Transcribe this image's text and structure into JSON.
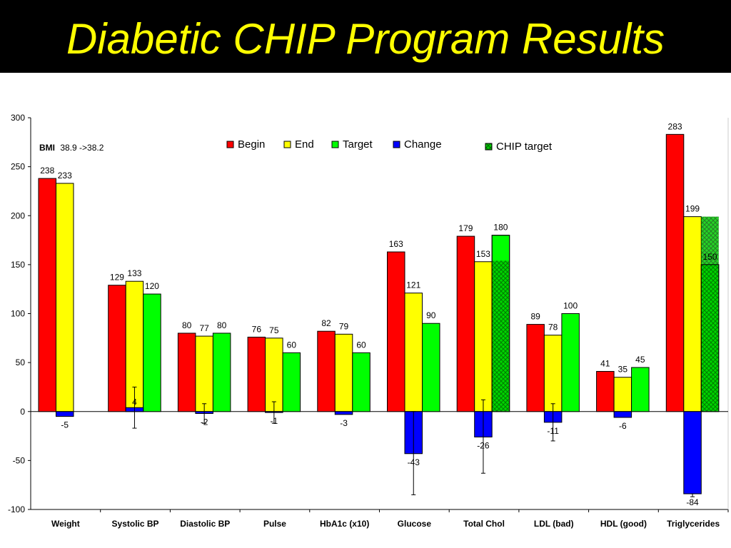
{
  "title": "Diabetic CHIP Program Results",
  "annotation": {
    "bold": "BMI",
    "text": "38.9 ->38.2"
  },
  "chart_data": {
    "type": "bar",
    "categories": [
      "Weight",
      "Systolic BP",
      "Diastolic BP",
      "Pulse",
      "HbA1c (x10)",
      "Glucose",
      "Total Chol",
      "LDL (bad)",
      "HDL (good)",
      "Triglycerides"
    ],
    "ylim": [
      -100,
      300
    ],
    "yticks": [
      -100,
      -50,
      0,
      50,
      100,
      150,
      200,
      250,
      300
    ],
    "grid": false,
    "legend_position": "top-center",
    "series": [
      {
        "name": "Begin",
        "color": "#ff0000",
        "values": [
          238,
          129,
          80,
          76,
          82,
          163,
          179,
          89,
          41,
          283
        ]
      },
      {
        "name": "End",
        "color": "#ffff00",
        "values": [
          233,
          133,
          77,
          75,
          79,
          121,
          153,
          78,
          35,
          199
        ]
      },
      {
        "name": "Target",
        "color": "#00ff00",
        "values": [
          null,
          120,
          80,
          60,
          60,
          90,
          180,
          100,
          45,
          150
        ]
      },
      {
        "name": "Change",
        "color": "#0000ff",
        "values": [
          -5,
          4,
          -2,
          -1,
          -3,
          -43,
          -26,
          -11,
          -6,
          -84
        ]
      }
    ],
    "chip_target": {
      "name": "CHIP target",
      "color": "#00cc00",
      "values": [
        null,
        null,
        null,
        null,
        null,
        null,
        154,
        null,
        null,
        199
      ]
    },
    "error_bars": [
      {
        "category": "Systolic BP",
        "low": -17,
        "high": 25
      },
      {
        "category": "Diastolic BP",
        "low": -12,
        "high": 8
      },
      {
        "category": "Pulse",
        "low": -12,
        "high": 10
      },
      {
        "category": "Glucose",
        "low": -85,
        "high": 0
      },
      {
        "category": "Total Chol",
        "low": -63,
        "high": 12
      },
      {
        "category": "LDL (bad)",
        "low": -30,
        "high": 8
      },
      {
        "category": "Triglycerides",
        "low": -87,
        "high": -84
      }
    ]
  }
}
